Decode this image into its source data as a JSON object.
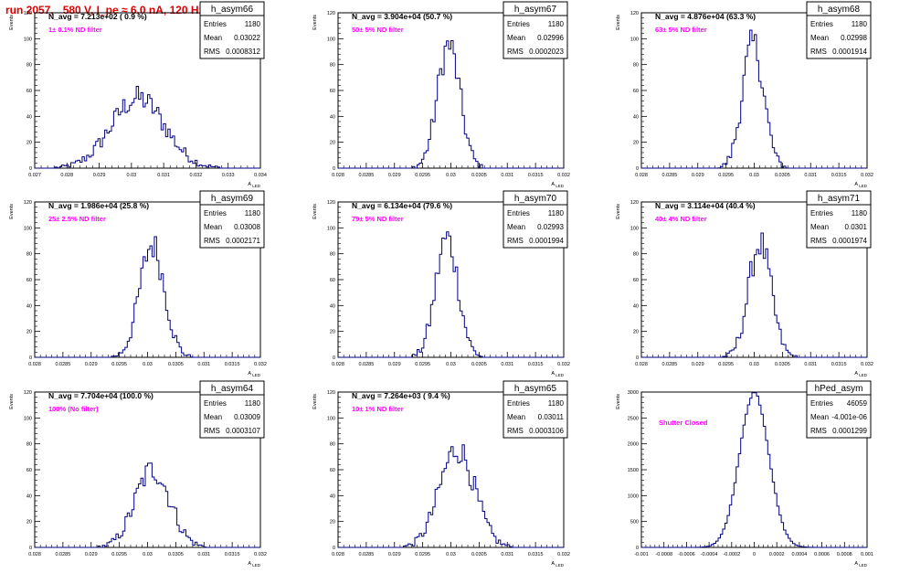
{
  "header": {
    "title": "run 2057,   580 V, I_pe ≈ 6.0 nA, 120 Hz"
  },
  "colors": {
    "header": "#e00000",
    "histogram": "#000080",
    "annotation": "#ff00ff",
    "axis": "#000000"
  },
  "y_axis_label": "Events",
  "x_axis_label": "A_LED",
  "stats_labels": {
    "entries": "Entries",
    "mean": "Mean",
    "rms": "RMS"
  },
  "chart_data": [
    {
      "type": "histogram",
      "title": "h_asym66",
      "navg": "N_avg = 7.213e+02 ( 0.9 %)",
      "filter": "1± 0.1% ND filter",
      "stats": {
        "entries": "1180",
        "mean": "0.03022",
        "rms": "0.0008312"
      },
      "xlim": [
        0.027,
        0.034
      ],
      "xticks": [
        "0.027",
        "0.028",
        "0.029",
        "0.03",
        "0.031",
        "0.032",
        "0.033",
        "0.034"
      ],
      "ylim": [
        0,
        120
      ],
      "yticks": [
        "0",
        "20",
        "40",
        "60",
        "80",
        "100",
        "120"
      ],
      "peak": 54,
      "center": 0.0302,
      "sigma": 0.00083
    },
    {
      "type": "histogram",
      "title": "h_asym67",
      "navg": "N_avg = 3.904e+04 (50.7 %)",
      "filter": "50± 5% ND filter",
      "stats": {
        "entries": "1180",
        "mean": "0.02996",
        "rms": "0.0002023"
      },
      "xlim": [
        0.028,
        0.032
      ],
      "xticks": [
        "0.028",
        "0.0285",
        "0.029",
        "0.0295",
        "0.03",
        "0.0305",
        "0.031",
        "0.0315",
        "0.032"
      ],
      "ylim": [
        0,
        120
      ],
      "yticks": [
        "0",
        "20",
        "40",
        "60",
        "80",
        "100",
        "120"
      ],
      "peak": 95,
      "center": 0.02996,
      "sigma": 0.0002
    },
    {
      "type": "histogram",
      "title": "h_asym68",
      "navg": "N_avg = 4.876e+04 (63.3 %)",
      "filter": "63± 5% ND filter",
      "stats": {
        "entries": "1180",
        "mean": "0.02998",
        "rms": "0.0001914"
      },
      "xlim": [
        0.028,
        0.032
      ],
      "xticks": [
        "0.028",
        "0.0285",
        "0.029",
        "0.0295",
        "0.03",
        "0.0305",
        "0.031",
        "0.0315",
        "0.032"
      ],
      "ylim": [
        0,
        120
      ],
      "yticks": [
        "0",
        "20",
        "40",
        "60",
        "80",
        "100",
        "120"
      ],
      "peak": 96,
      "center": 0.02998,
      "sigma": 0.00019
    },
    {
      "type": "histogram",
      "title": "h_asym69",
      "navg": "N_avg = 1.986e+04 (25.8 %)",
      "filter": "25± 2.5% ND filter",
      "stats": {
        "entries": "1180",
        "mean": "0.03008",
        "rms": "0.0002171"
      },
      "xlim": [
        0.028,
        0.032
      ],
      "xticks": [
        "0.028",
        "0.0285",
        "0.029",
        "0.0295",
        "0.03",
        "0.0305",
        "0.031",
        "0.0315",
        "0.032"
      ],
      "ylim": [
        0,
        120
      ],
      "yticks": [
        "0",
        "20",
        "40",
        "60",
        "80",
        "100",
        "120"
      ],
      "peak": 87,
      "center": 0.03008,
      "sigma": 0.00022
    },
    {
      "type": "histogram",
      "title": "h_asym70",
      "navg": "N_avg = 6.134e+04 (79.6 %)",
      "filter": "79± 5% ND filter",
      "stats": {
        "entries": "1180",
        "mean": "0.02993",
        "rms": "0.0001994"
      },
      "xlim": [
        0.028,
        0.032
      ],
      "xticks": [
        "0.028",
        "0.0285",
        "0.029",
        "0.0295",
        "0.03",
        "0.0305",
        "0.031",
        "0.0315",
        "0.032"
      ],
      "ylim": [
        0,
        120
      ],
      "yticks": [
        "0",
        "20",
        "40",
        "60",
        "80",
        "100",
        "120"
      ],
      "peak": 92,
      "center": 0.02993,
      "sigma": 0.0002
    },
    {
      "type": "histogram",
      "title": "h_asym71",
      "navg": "N_avg = 3.114e+04 (40.4 %)",
      "filter": "40± 4% ND filter",
      "stats": {
        "entries": "1180",
        "mean": "0.0301",
        "rms": "0.0001974"
      },
      "xlim": [
        0.028,
        0.032
      ],
      "xticks": [
        "0.028",
        "0.0285",
        "0.029",
        "0.0295",
        "0.03",
        "0.0305",
        "0.031",
        "0.0315",
        "0.032"
      ],
      "ylim": [
        0,
        120
      ],
      "yticks": [
        "0",
        "20",
        "40",
        "60",
        "80",
        "100",
        "120"
      ],
      "peak": 88,
      "center": 0.0301,
      "sigma": 0.0002
    },
    {
      "type": "histogram",
      "title": "h_asym64",
      "navg": "N_avg = 7.704e+04 (100.0 %)",
      "filter": "100% (No filter)",
      "stats": {
        "entries": "1180",
        "mean": "0.03009",
        "rms": "0.0003107"
      },
      "xlim": [
        0.028,
        0.032
      ],
      "xticks": [
        "0.028",
        "0.0285",
        "0.029",
        "0.0295",
        "0.03",
        "0.0305",
        "0.031",
        "0.0315",
        "0.032"
      ],
      "ylim": [
        0,
        120
      ],
      "yticks": [
        "0",
        "20",
        "40",
        "60",
        "80",
        "100",
        "120"
      ],
      "peak": 60,
      "center": 0.03009,
      "sigma": 0.00031
    },
    {
      "type": "histogram",
      "title": "h_asym65",
      "navg": "N_avg = 7.264e+03 ( 9.4 %)",
      "filter": "10± 1% ND filter",
      "stats": {
        "entries": "1180",
        "mean": "0.03011",
        "rms": "0.0003106"
      },
      "xlim": [
        0.028,
        0.032
      ],
      "xticks": [
        "0.028",
        "0.0285",
        "0.029",
        "0.0295",
        "0.03",
        "0.0305",
        "0.031",
        "0.0315",
        "0.032"
      ],
      "ylim": [
        0,
        120
      ],
      "yticks": [
        "0",
        "20",
        "40",
        "60",
        "80",
        "100",
        "120"
      ],
      "peak": 76,
      "center": 0.03011,
      "sigma": 0.00031
    },
    {
      "type": "histogram",
      "title": "hPed_asym",
      "navg": "",
      "filter": "Shutter Closed",
      "stats": {
        "entries": "46059",
        "mean": "-4.001e-06",
        "rms": "0.0001299"
      },
      "xlim": [
        -0.001,
        0.001
      ],
      "xticks": [
        "-0.001",
        "-0.0008",
        "-0.0006",
        "-0.0004",
        "-0.0002",
        "0",
        "0.0002",
        "0.0004",
        "0.0006",
        "0.0008",
        "0.001"
      ],
      "ylim": [
        0,
        3000
      ],
      "yticks": [
        "0",
        "500",
        "1000",
        "1500",
        "2000",
        "2500",
        "3000"
      ],
      "peak": 2990,
      "center": 0.0,
      "sigma": 0.00013
    }
  ]
}
